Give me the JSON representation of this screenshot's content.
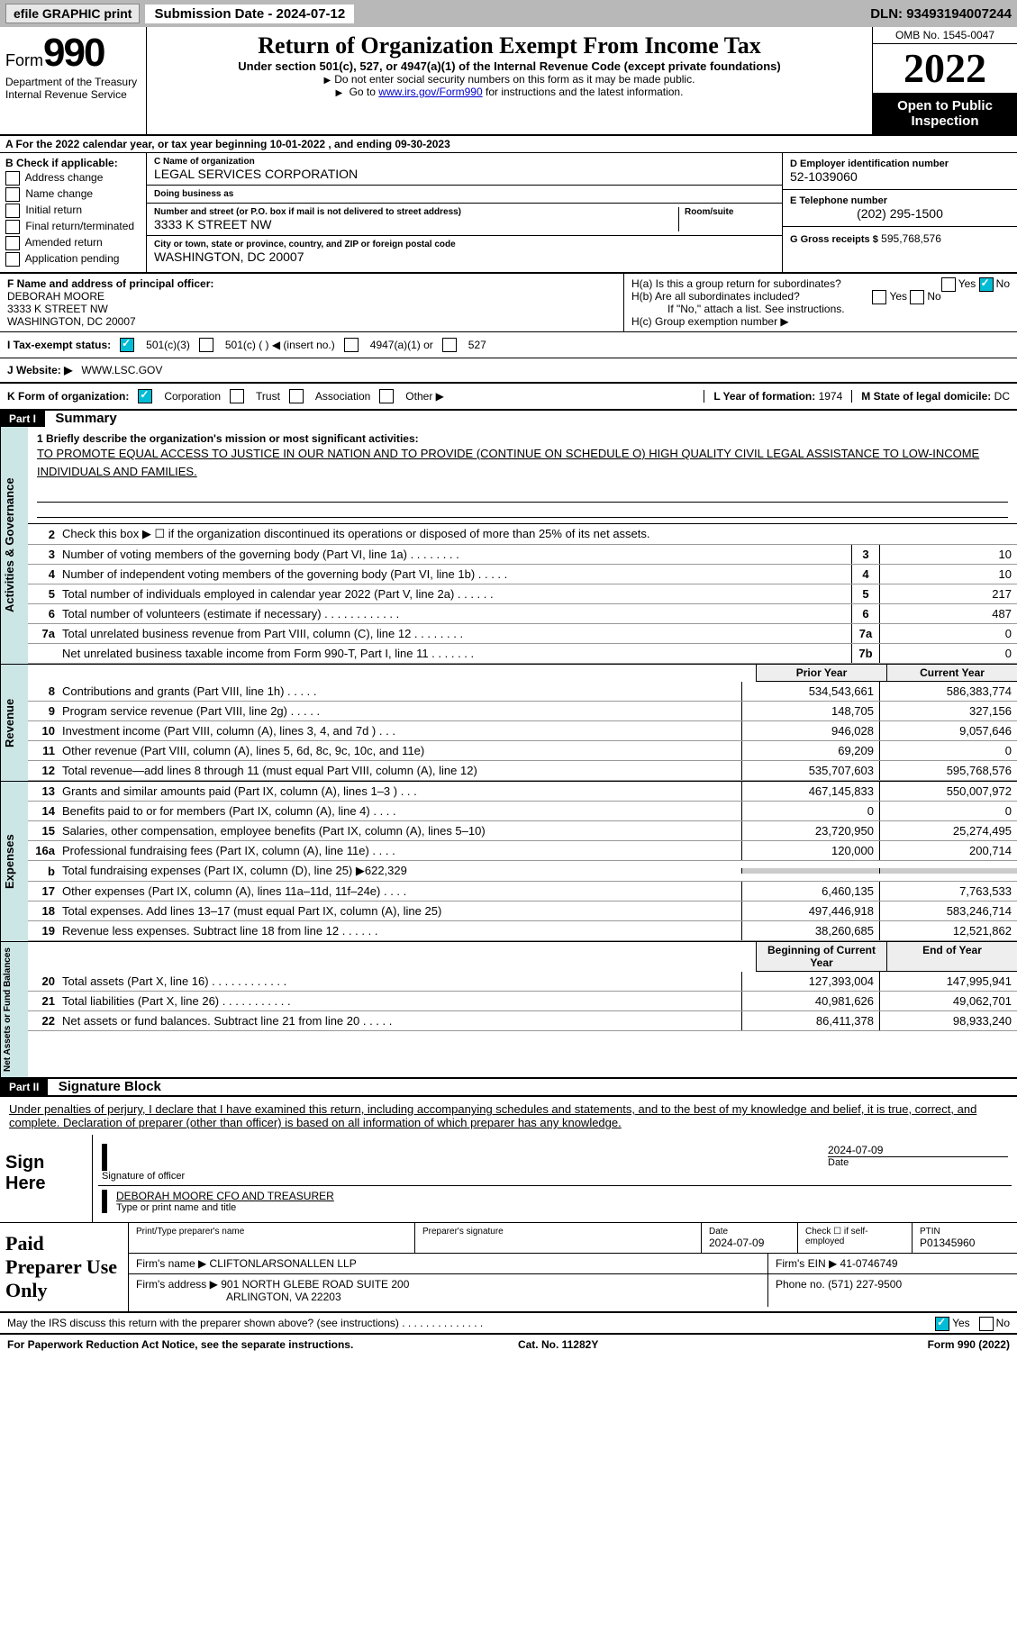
{
  "topbar": {
    "efile": "efile GRAPHIC print",
    "submission": "Submission Date - 2024-07-12",
    "dln": "DLN: 93493194007244"
  },
  "header": {
    "form_prefix": "Form",
    "form_num": "990",
    "dept": "Department of the Treasury Internal Revenue Service",
    "title": "Return of Organization Exempt From Income Tax",
    "subtitle": "Under section 501(c), 527, or 4947(a)(1) of the Internal Revenue Code (except private foundations)",
    "note1": "Do not enter social security numbers on this form as it may be made public.",
    "note2_pre": "Go to ",
    "note2_link": "www.irs.gov/Form990",
    "note2_post": " for instructions and the latest information.",
    "omb": "OMB No. 1545-0047",
    "year": "2022",
    "open": "Open to Public Inspection"
  },
  "section_a": "A   For the 2022 calendar year, or tax year beginning 10-01-2022     , and ending 09-30-2023",
  "col_b": {
    "title": "B Check if applicable:",
    "items": [
      "Address change",
      "Name change",
      "Initial return",
      "Final return/terminated",
      "Amended return",
      "Application pending"
    ],
    "checked": []
  },
  "col_c": {
    "name_lbl": "C Name of organization",
    "name": "LEGAL SERVICES CORPORATION",
    "dba_lbl": "Doing business as",
    "dba": "",
    "addr_lbl": "Number and street (or P.O. box if mail is not delivered to street address)",
    "addr": "3333 K STREET NW",
    "room_lbl": "Room/suite",
    "city_lbl": "City or town, state or province, country, and ZIP or foreign postal code",
    "city": "WASHINGTON, DC  20007"
  },
  "col_d": {
    "ein_lbl": "D Employer identification number",
    "ein": "52-1039060",
    "tel_lbl": "E Telephone number",
    "tel": "(202) 295-1500",
    "gross_lbl": "G Gross receipts $",
    "gross": "595,768,576"
  },
  "row_f": {
    "lbl": "F Name and address of principal officer:",
    "name": "DEBORAH MOORE",
    "addr1": "3333 K STREET NW",
    "addr2": "WASHINGTON, DC  20007",
    "h_a": "H(a)  Is this a group return for subordinates?",
    "h_b": "H(b)  Are all subordinates included?",
    "h_note": "If \"No,\" attach a list. See instructions.",
    "h_c": "H(c)  Group exemption number ▶"
  },
  "row_i": {
    "lbl": "I   Tax-exempt status:",
    "opts": [
      "501(c)(3)",
      "501(c) (  ) ◀ (insert no.)",
      "4947(a)(1) or",
      "527"
    ]
  },
  "row_j": {
    "lbl": "J   Website: ▶",
    "val": "WWW.LSC.GOV"
  },
  "row_k": {
    "lbl": "K Form of organization:",
    "opts": [
      "Corporation",
      "Trust",
      "Association",
      "Other ▶"
    ],
    "l_lbl": "L Year of formation:",
    "l_val": "1974",
    "m_lbl": "M State of legal domicile:",
    "m_val": "DC"
  },
  "part1": {
    "header": "Part I",
    "title": "Summary",
    "side1": "Activities & Governance",
    "side2": "Revenue",
    "side3": "Expenses",
    "side4": "Net Assets or Fund Balances",
    "line1_lbl": "1   Briefly describe the organization's mission or most significant activities:",
    "line1_text": "TO PROMOTE EQUAL ACCESS TO JUSTICE IN OUR NATION AND TO PROVIDE (CONTINUE ON SCHEDULE O) HIGH QUALITY CIVIL LEGAL ASSISTANCE TO LOW-INCOME INDIVIDUALS AND FAMILIES.",
    "line2": "Check this box ▶ ☐ if the organization discontinued its operations or disposed of more than 25% of its net assets.",
    "rows_gov": [
      {
        "n": "3",
        "d": "Number of voting members of the governing body (Part VI, line 1a)   .    .    .    .    .    .    .    .",
        "b": "3",
        "v": "10"
      },
      {
        "n": "4",
        "d": "Number of independent voting members of the governing body (Part VI, line 1b)   .    .    .    .    .",
        "b": "4",
        "v": "10"
      },
      {
        "n": "5",
        "d": "Total number of individuals employed in calendar year 2022 (Part V, line 2a)   .    .    .    .    .    .",
        "b": "5",
        "v": "217"
      },
      {
        "n": "6",
        "d": "Total number of volunteers (estimate if necessary)    .    .    .    .    .    .    .    .    .    .    .    .",
        "b": "6",
        "v": "487"
      },
      {
        "n": "7a",
        "d": "Total unrelated business revenue from Part VIII, column (C), line 12   .    .    .    .    .    .    .    .",
        "b": "7a",
        "v": "0"
      },
      {
        "n": "",
        "d": "Net unrelated business taxable income from Form 990-T, Part I, line 11   .    .    .    .    .    .    .",
        "b": "7b",
        "v": "0"
      }
    ],
    "col_py": "Prior Year",
    "col_cy": "Current Year",
    "rows_rev": [
      {
        "n": "8",
        "d": "Contributions and grants (Part VIII, line 1h)    .    .    .    .    .",
        "py": "534,543,661",
        "cy": "586,383,774"
      },
      {
        "n": "9",
        "d": "Program service revenue (Part VIII, line 2g)    .    .    .    .    .",
        "py": "148,705",
        "cy": "327,156"
      },
      {
        "n": "10",
        "d": "Investment income (Part VIII, column (A), lines 3, 4, and 7d )    .    .    .",
        "py": "946,028",
        "cy": "9,057,646"
      },
      {
        "n": "11",
        "d": "Other revenue (Part VIII, column (A), lines 5, 6d, 8c, 9c, 10c, and 11e)",
        "py": "69,209",
        "cy": "0"
      },
      {
        "n": "12",
        "d": "Total revenue—add lines 8 through 11 (must equal Part VIII, column (A), line 12)",
        "py": "535,707,603",
        "cy": "595,768,576"
      }
    ],
    "rows_exp": [
      {
        "n": "13",
        "d": "Grants and similar amounts paid (Part IX, column (A), lines 1–3 )   .    .    .",
        "py": "467,145,833",
        "cy": "550,007,972"
      },
      {
        "n": "14",
        "d": "Benefits paid to or for members (Part IX, column (A), line 4)    .    .    .    .",
        "py": "0",
        "cy": "0"
      },
      {
        "n": "15",
        "d": "Salaries, other compensation, employee benefits (Part IX, column (A), lines 5–10)",
        "py": "23,720,950",
        "cy": "25,274,495"
      },
      {
        "n": "16a",
        "d": "Professional fundraising fees (Part IX, column (A), line 11e)    .    .    .    .",
        "py": "120,000",
        "cy": "200,714"
      },
      {
        "n": "b",
        "d": "Total fundraising expenses (Part IX, column (D), line 25) ▶622,329",
        "py": "",
        "cy": "",
        "gray": true
      },
      {
        "n": "17",
        "d": "Other expenses (Part IX, column (A), lines 11a–11d, 11f–24e)    .    .    .    .",
        "py": "6,460,135",
        "cy": "7,763,533"
      },
      {
        "n": "18",
        "d": "Total expenses. Add lines 13–17 (must equal Part IX, column (A), line 25)",
        "py": "497,446,918",
        "cy": "583,246,714"
      },
      {
        "n": "19",
        "d": "Revenue less expenses. Subtract line 18 from line 12   .    .    .    .    .    .",
        "py": "38,260,685",
        "cy": "12,521,862"
      }
    ],
    "col_boy": "Beginning of Current Year",
    "col_eoy": "End of Year",
    "rows_net": [
      {
        "n": "20",
        "d": "Total assets (Part X, line 16)    .    .    .    .    .    .    .    .    .    .    .    .",
        "py": "127,393,004",
        "cy": "147,995,941"
      },
      {
        "n": "21",
        "d": "Total liabilities (Part X, line 26)    .    .    .    .    .    .    .    .    .    .    .",
        "py": "40,981,626",
        "cy": "49,062,701"
      },
      {
        "n": "22",
        "d": "Net assets or fund balances. Subtract line 21 from line 20   .    .    .    .    .",
        "py": "86,411,378",
        "cy": "98,933,240"
      }
    ]
  },
  "part2": {
    "header": "Part II",
    "title": "Signature Block",
    "decl": "Under penalties of perjury, I declare that I have examined this return, including accompanying schedules and statements, and to the best of my knowledge and belief, it is true, correct, and complete. Declaration of preparer (other than officer) is based on all information of which preparer has any knowledge.",
    "sign_here": "Sign Here",
    "sig_date": "2024-07-09",
    "sig_lbl": "Signature of officer",
    "date_lbl": "Date",
    "name": "DEBORAH MOORE CFO AND TREASURER",
    "name_lbl": "Type or print name and title",
    "prep_title": "Paid Preparer Use Only",
    "prep_name_lbl": "Print/Type preparer's name",
    "prep_sig_lbl": "Preparer's signature",
    "prep_date_lbl": "Date",
    "prep_date": "2024-07-09",
    "prep_check": "Check ☐ if self-employed",
    "ptin_lbl": "PTIN",
    "ptin": "P01345960",
    "firm_name_lbl": "Firm's name      ▶",
    "firm_name": "CLIFTONLARSONALLEN LLP",
    "firm_ein_lbl": "Firm's EIN ▶",
    "firm_ein": "41-0746749",
    "firm_addr_lbl": "Firm's address ▶",
    "firm_addr1": "901 NORTH GLEBE ROAD SUITE 200",
    "firm_addr2": "ARLINGTON, VA  22203",
    "phone_lbl": "Phone no.",
    "phone": "(571) 227-9500",
    "discuss": "May the IRS discuss this return with the preparer shown above? (see instructions)    .    .    .    .    .    .    .    .    .    .    .    .    .    ."
  },
  "footer": {
    "a": "For Paperwork Reduction Act Notice, see the separate instructions.",
    "b": "Cat. No. 11282Y",
    "c": "Form 990 (2022)"
  }
}
